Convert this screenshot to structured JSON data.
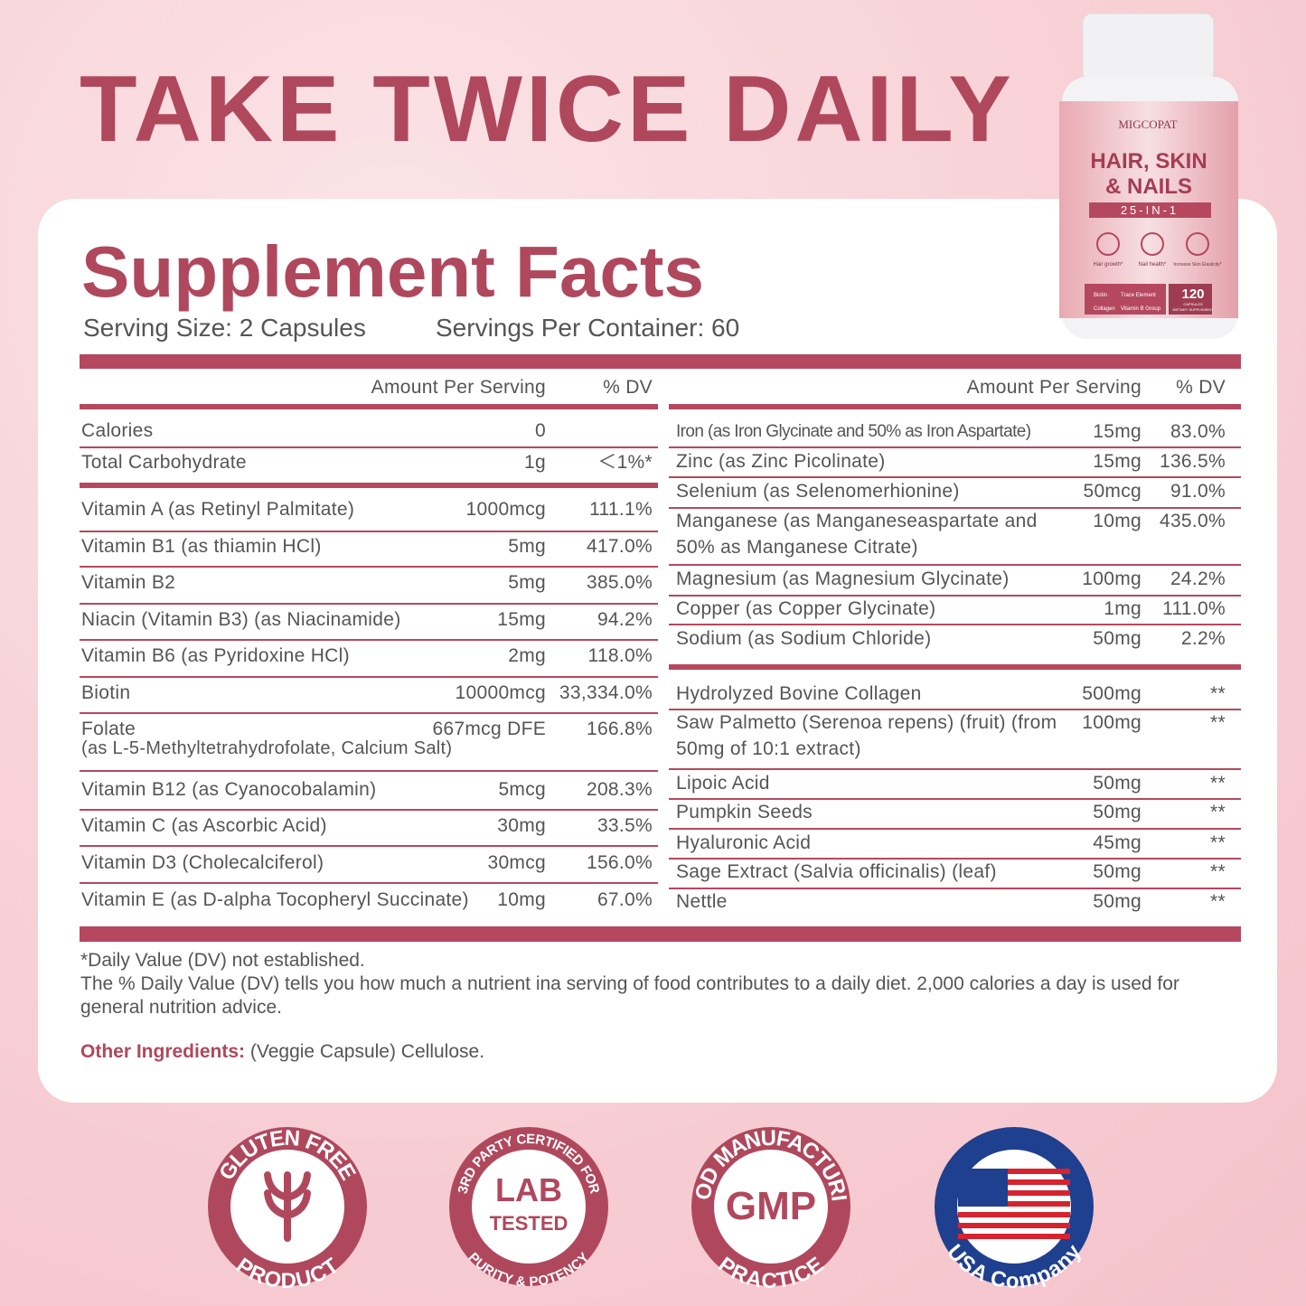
{
  "headline": "TAKE TWICE DAILY",
  "product": {
    "brand": "MIGCOPAT",
    "name_lines": [
      "HAIR, SKIN",
      "& NAILS"
    ],
    "tagline": "25-IN-1",
    "benefits": [
      "Hair growth*",
      "Nail health*",
      "Increase Skin Elasticity*"
    ],
    "features": [
      "Biotin",
      "Trace Element",
      "Collagen",
      "Vitamin B Group"
    ],
    "count": "120",
    "count_unit": "CAPSULES",
    "form": "DIETARY SUPPLEMENT"
  },
  "facts": {
    "title": "Supplement Facts",
    "serving_size": "Serving Size: 2 Capsules",
    "servings_per_container": "Servings Per Container: 60",
    "columns": {
      "amount": "Amount Per Serving",
      "dv": "% DV"
    },
    "left_rows": [
      {
        "name": "Calories",
        "amount": "0"
      },
      {
        "name": "Total Carbohydrate",
        "amount": "1g",
        "dv": "＜1%*"
      },
      {
        "name": "Vitamin A (as Retinyl Palmitate)",
        "amount": "1000mcg",
        "dv": "111.1%"
      },
      {
        "name": "Vitamin B1 (as thiamin HCl)",
        "amount": "5mg",
        "dv": "417.0%"
      },
      {
        "name": "Vitamin B2",
        "amount": "5mg",
        "dv": "385.0%"
      },
      {
        "name": "Niacin (Vitamin B3) (as Niacinamide)",
        "amount": "15mg",
        "dv": "94.2%"
      },
      {
        "name": "Vitamin B6 (as Pyridoxine HCl)",
        "amount": "2mg",
        "dv": "118.0%"
      },
      {
        "name": "Biotin",
        "amount": "10000mcg",
        "dv": "33,334.0%"
      },
      {
        "name": "Folate",
        "note": "(as L-5-Methyltetrahydrofolate, Calcium Salt)",
        "amount": "667mcg DFE",
        "dv": "166.8%"
      },
      {
        "name": "Vitamin B12 (as Cyanocobalamin)",
        "amount": "5mcg",
        "dv": "208.3%"
      },
      {
        "name": "Vitamin C (as Ascorbic Acid)",
        "amount": "30mg",
        "dv": "33.5%"
      },
      {
        "name": "Vitamin D3 (Cholecalciferol)",
        "amount": "30mcg",
        "dv": "156.0%"
      },
      {
        "name": "Vitamin E (as D-alpha Tocopheryl Succinate)",
        "amount": "10mg",
        "dv": "67.0%"
      }
    ],
    "right_rows": [
      {
        "name": "Iron (as Iron Glycinate and 50% as Iron Aspartate)",
        "amount": "15mg",
        "dv": "83.0%"
      },
      {
        "name": "Zinc (as Zinc Picolinate)",
        "amount": "15mg",
        "dv": "136.5%"
      },
      {
        "name": "Selenium (as Selenomerhionine)",
        "amount": "50mcg",
        "dv": "91.0%"
      },
      {
        "name": "Manganese (as Manganeseaspartate and 50% as Manganese Citrate)",
        "amount": "10mg",
        "dv": "435.0%"
      },
      {
        "name": "Magnesium (as Magnesium Glycinate)",
        "amount": "100mg",
        "dv": "24.2%"
      },
      {
        "name": "Copper (as Copper Glycinate)",
        "amount": "1mg",
        "dv": "111.0%"
      },
      {
        "name": "Sodium (as Sodium Chloride)",
        "amount": "50mg",
        "dv": "2.2%"
      },
      {
        "name": "Hydrolyzed Bovine Collagen",
        "amount": "500mg",
        "dv": "**"
      },
      {
        "name": "Saw Palmetto (Serenoa repens) (fruit) (from 50mg of 10:1 extract)",
        "amount": "100mg",
        "dv": "**"
      },
      {
        "name": "Lipoic Acid",
        "amount": "50mg",
        "dv": "**"
      },
      {
        "name": "Pumpkin Seeds",
        "amount": "50mg",
        "dv": "**"
      },
      {
        "name": "Hyaluronic Acid",
        "amount": "45mg",
        "dv": "**"
      },
      {
        "name": "Sage Extract (Salvia officinalis) (leaf)",
        "amount": "50mg",
        "dv": "**"
      },
      {
        "name": "Nettle",
        "amount": "50mg",
        "dv": "**"
      }
    ],
    "footnote_star": "*Daily Value (DV) not established.",
    "footnote_dv": "The % Daily Value (DV) tells you how much a nutrient ina serving of food contributes to a daily diet. 2,000 calories a day is used for general nutrition advice.",
    "other_ingredients_label": "Other Ingredients:",
    "other_ingredients": "(Veggie Capsule) Cellulose."
  },
  "badges": [
    {
      "top": "GLUTEN FREE",
      "bottom": "PRODUCT"
    },
    {
      "top": "3RD PARTY CERTIFIED FOR",
      "center": [
        "LAB",
        "TESTED"
      ],
      "bottom": "PURITY & POTENCY"
    },
    {
      "top": "GOOD MANUFACTURING",
      "center": [
        "GMP"
      ],
      "bottom": "PRACTICE"
    },
    {
      "bottom": "USA Company"
    }
  ]
}
